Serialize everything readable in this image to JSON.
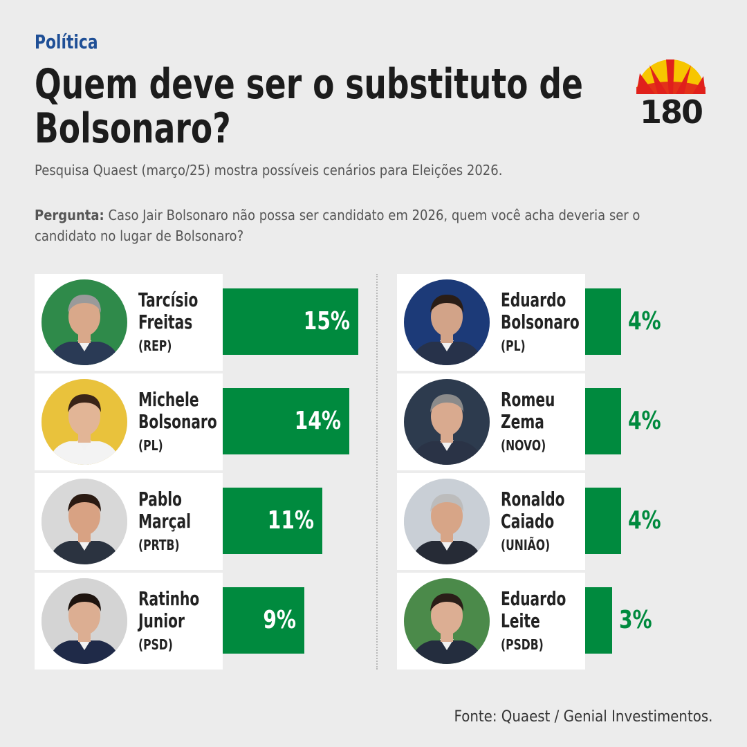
{
  "header": {
    "section": "Política",
    "title_line1": "Quem deve ser o substituto de",
    "title_line2": "Bolsonaro?",
    "subtitle": "Pesquisa Quaest (março/25) mostra possíveis cenários para Eleições 2026.",
    "question_label": "Pergunta:",
    "question_text": " Caso Jair Bolsonaro não possa ser candidato em 2026, quem você acha deveria ser o candidato no lugar de Bolsonaro?"
  },
  "logo": {
    "text": "180",
    "colors": [
      "#e0201c",
      "#f7c600"
    ]
  },
  "colors": {
    "bar": "#008a3e",
    "card": "#ffffff",
    "background": "#ececec",
    "section": "#1f4f96"
  },
  "chart_data": {
    "type": "bar",
    "unit": "%",
    "categories": [
      "Tarcísio Freitas",
      "Michele Bolsonaro",
      "Pablo Marçal",
      "Ratinho Junior",
      "Eduardo Bolsonaro",
      "Romeu Zema",
      "Ronaldo Caiado",
      "Eduardo Leite"
    ],
    "values": [
      15,
      14,
      11,
      9,
      4,
      4,
      4,
      3
    ],
    "candidates": [
      {
        "first": "Tarcísio",
        "last": "Freitas",
        "party": "(REP)",
        "value": 15,
        "label": "15%"
      },
      {
        "first": "Michele",
        "last": "Bolsonaro",
        "party": "(PL)",
        "value": 14,
        "label": "14%"
      },
      {
        "first": "Pablo",
        "last": "Marçal",
        "party": "(PRTB)",
        "value": 11,
        "label": "11%"
      },
      {
        "first": "Ratinho",
        "last": "Junior",
        "party": "(PSD)",
        "value": 9,
        "label": "9%"
      },
      {
        "first": "Eduardo",
        "last": "Bolsonaro",
        "party": "(PL)",
        "value": 4,
        "label": "4%"
      },
      {
        "first": "Romeu",
        "last": "Zema",
        "party": "(NOVO)",
        "value": 4,
        "label": "4%"
      },
      {
        "first": "Ronaldo",
        "last": "Caiado",
        "party": "(UNIÃO)",
        "value": 4,
        "label": "4%"
      },
      {
        "first": "Eduardo",
        "last": "Leite",
        "party": "(PSDB)",
        "value": 3,
        "label": "3%"
      }
    ]
  },
  "footer": {
    "source": "Fonte:  Quaest / Genial Investimentos."
  }
}
